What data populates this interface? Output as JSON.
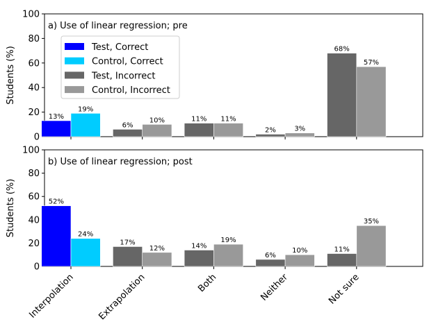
{
  "chart_data": {
    "type": "bar",
    "categories": [
      "Interpolation",
      "Extrapolation",
      "Both",
      "Neither",
      "Not sure"
    ],
    "ylabel": "Students (%)",
    "ylim": [
      0,
      100
    ],
    "yticks": [
      0,
      20,
      40,
      60,
      80,
      100
    ],
    "legend": {
      "placement": "upper-left",
      "entries": [
        {
          "label": "Test, Correct",
          "color": "#0000ff"
        },
        {
          "label": "Control, Correct",
          "color": "#00ccff"
        },
        {
          "label": "Test, Incorrect",
          "color": "#666666"
        },
        {
          "label": "Control, Incorrect",
          "color": "#999999"
        }
      ]
    },
    "panels": [
      {
        "title": "a) Use of linear regression; pre",
        "test": {
          "values": [
            13,
            6,
            11,
            2,
            68
          ],
          "labels": [
            "13%",
            "6%",
            "11%",
            "2%",
            "68%"
          ]
        },
        "control": {
          "values": [
            19,
            10,
            11,
            3,
            57
          ],
          "labels": [
            "19%",
            "10%",
            "11%",
            "3%",
            "57%"
          ]
        }
      },
      {
        "title": "b) Use of linear regression; post",
        "test": {
          "values": [
            52,
            17,
            14,
            6,
            11
          ],
          "labels": [
            "52%",
            "17%",
            "14%",
            "6%",
            "11%"
          ]
        },
        "control": {
          "values": [
            24,
            12,
            19,
            10,
            35
          ],
          "labels": [
            "24%",
            "12%",
            "19%",
            "10%",
            "35%"
          ]
        }
      }
    ],
    "colors": {
      "test_correct": "#0000ff",
      "control_correct": "#00ccff",
      "test_incorrect": "#666666",
      "control_incorrect": "#999999"
    }
  }
}
